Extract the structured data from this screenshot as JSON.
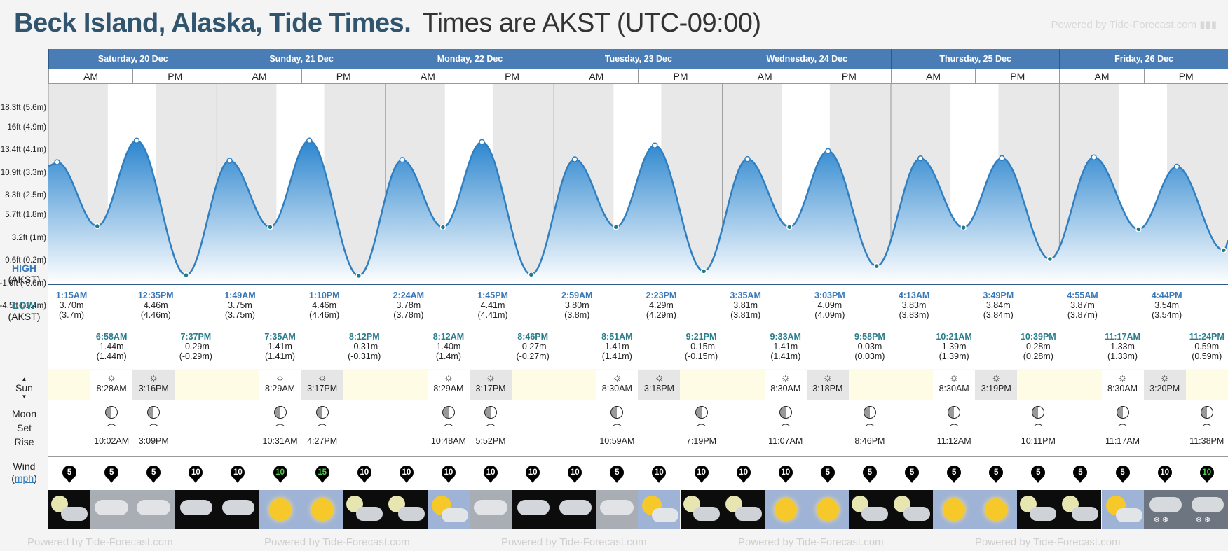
{
  "header": {
    "location": "Beck Island, Alaska, Tide Times.",
    "timezone": "Times are AKST (UTC-09:00)",
    "powered_by": "Powered by Tide-Forecast.com"
  },
  "days": [
    {
      "label": "Saturday, 20 Dec"
    },
    {
      "label": "Sunday, 21 Dec"
    },
    {
      "label": "Monday, 22 Dec"
    },
    {
      "label": "Tuesday, 23 Dec"
    },
    {
      "label": "Wednesday, 24 Dec"
    },
    {
      "label": "Thursday, 25 Dec"
    },
    {
      "label": "Friday, 26 Dec"
    }
  ],
  "am_label": "AM",
  "pm_label": "PM",
  "y_axis": [
    "18.3ft (5.6m)",
    "16ft (4.9m)",
    "13.4ft (4.1m)",
    "10.9ft (3.3m)",
    "8.3ft (2.5m)",
    "5.7ft (1.8m)",
    "3.2ft (1m)",
    "0.6ft (0.2m)",
    "-1.9ft (-0.6m)",
    "-4.5ft (-1.4m)"
  ],
  "rows": {
    "high": "HIGH",
    "high_tz": "(AKST)",
    "low": "LOW",
    "low_tz": "(AKST)",
    "sun": "Sun",
    "moon": "Moon",
    "set": "Set",
    "rise": "Rise",
    "wind": "Wind",
    "wind_unit": "mph"
  },
  "highs": [
    {
      "time": "1:15AM",
      "m": "3.70m",
      "paren": "(3.7m)"
    },
    {
      "time": "12:35PM",
      "m": "4.46m",
      "paren": "(4.46m)"
    },
    {
      "time": "1:49AM",
      "m": "3.75m",
      "paren": "(3.75m)"
    },
    {
      "time": "1:10PM",
      "m": "4.46m",
      "paren": "(4.46m)"
    },
    {
      "time": "2:24AM",
      "m": "3.78m",
      "paren": "(3.78m)"
    },
    {
      "time": "1:45PM",
      "m": "4.41m",
      "paren": "(4.41m)"
    },
    {
      "time": "2:59AM",
      "m": "3.80m",
      "paren": "(3.8m)"
    },
    {
      "time": "2:23PM",
      "m": "4.29m",
      "paren": "(4.29m)"
    },
    {
      "time": "3:35AM",
      "m": "3.81m",
      "paren": "(3.81m)"
    },
    {
      "time": "3:03PM",
      "m": "4.09m",
      "paren": "(4.09m)"
    },
    {
      "time": "4:13AM",
      "m": "3.83m",
      "paren": "(3.83m)"
    },
    {
      "time": "3:49PM",
      "m": "3.84m",
      "paren": "(3.84m)"
    },
    {
      "time": "4:55AM",
      "m": "3.87m",
      "paren": "(3.87m)"
    },
    {
      "time": "4:44PM",
      "m": "3.54m",
      "paren": "(3.54m)"
    }
  ],
  "lows": [
    {
      "time": "6:58AM",
      "m": "1.44m",
      "paren": "(1.44m)"
    },
    {
      "time": "7:37PM",
      "m": "-0.29m",
      "paren": "(-0.29m)"
    },
    {
      "time": "7:35AM",
      "m": "1.41m",
      "paren": "(1.41m)"
    },
    {
      "time": "8:12PM",
      "m": "-0.31m",
      "paren": "(-0.31m)"
    },
    {
      "time": "8:12AM",
      "m": "1.40m",
      "paren": "(1.4m)"
    },
    {
      "time": "8:46PM",
      "m": "-0.27m",
      "paren": "(-0.27m)"
    },
    {
      "time": "8:51AM",
      "m": "1.41m",
      "paren": "(1.41m)"
    },
    {
      "time": "9:21PM",
      "m": "-0.15m",
      "paren": "(-0.15m)"
    },
    {
      "time": "9:33AM",
      "m": "1.41m",
      "paren": "(1.41m)"
    },
    {
      "time": "9:58PM",
      "m": "0.03m",
      "paren": "(0.03m)"
    },
    {
      "time": "10:21AM",
      "m": "1.39m",
      "paren": "(1.39m)"
    },
    {
      "time": "10:39PM",
      "m": "0.28m",
      "paren": "(0.28m)"
    },
    {
      "time": "11:17AM",
      "m": "1.33m",
      "paren": "(1.33m)"
    },
    {
      "time": "11:24PM",
      "m": "0.59m",
      "paren": "(0.59m)"
    }
  ],
  "sun": [
    {
      "rise": "8:28AM",
      "set": "3:16PM"
    },
    {
      "rise": "8:29AM",
      "set": "3:17PM"
    },
    {
      "rise": "8:29AM",
      "set": "3:17PM"
    },
    {
      "rise": "8:30AM",
      "set": "3:18PM"
    },
    {
      "rise": "8:30AM",
      "set": "3:18PM"
    },
    {
      "rise": "8:30AM",
      "set": "3:19PM"
    },
    {
      "rise": "8:30AM",
      "set": "3:20PM"
    }
  ],
  "moon": [
    {
      "time": "10:02AM"
    },
    {
      "time": "3:09PM"
    },
    {
      "time": "10:31AM"
    },
    {
      "time": "4:27PM"
    },
    {
      "time": "10:48AM"
    },
    {
      "time": "5:52PM"
    },
    {
      "time": "10:59AM"
    },
    {
      "time": "7:19PM"
    },
    {
      "time": "11:07AM"
    },
    {
      "time": "8:46PM"
    },
    {
      "time": "11:12AM"
    },
    {
      "time": "10:11PM"
    },
    {
      "time": "11:17AM"
    },
    {
      "time": "11:38PM"
    }
  ],
  "wind": [
    "5",
    "5",
    "5",
    "10",
    "10",
    "10",
    "15",
    "10",
    "10",
    "10",
    "10",
    "10",
    "10",
    "5",
    "10",
    "10",
    "10",
    "10",
    "5",
    "5",
    "5",
    "5",
    "5",
    "5",
    "5",
    "5",
    "10",
    "10"
  ],
  "weather_icons": [
    "moon-cloud-icon",
    "cloud-icon",
    "cloud-icon",
    "night-cloud-icon",
    "night-cloud-icon",
    "sun-icon",
    "sun-icon",
    "moon-cloud-icon",
    "moon-cloud-icon",
    "sun-cloud-icon",
    "cloud-icon",
    "night-cloud-icon",
    "night-cloud-icon",
    "cloud-icon",
    "sun-cloud-icon",
    "moon-cloud-icon",
    "moon-cloud-icon",
    "sun-icon",
    "sun-icon",
    "moon-cloud-icon",
    "moon-cloud-icon",
    "sun-icon",
    "sun-icon",
    "moon-cloud-icon",
    "moon-cloud-icon",
    "sun-cloud-icon",
    "snow-cloud-icon",
    "snow-cloud-icon"
  ],
  "colors": {
    "header_blue": "#4a7db5",
    "tide_blue": "#3a8dd4",
    "title_blue": "#31546f",
    "low_teal": "#2a7d8c"
  }
}
